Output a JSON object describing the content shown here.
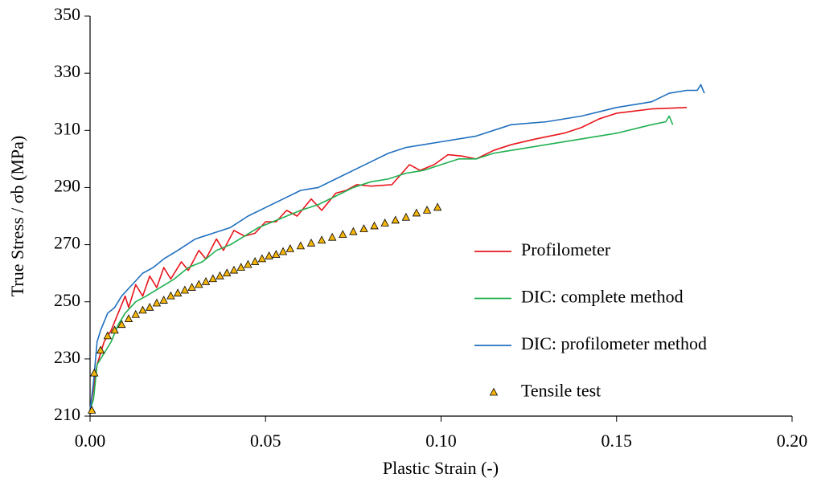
{
  "chart_data": {
    "type": "line",
    "x_label": "Plastic Strain (-)",
    "y_label": "True Stress / σb (MPa)",
    "xlim": [
      0,
      0.2
    ],
    "xticks": [
      {
        "value": 0,
        "label": "0.00"
      },
      {
        "value": 0.05,
        "label": "0.05"
      },
      {
        "value": 0.1,
        "label": "0.10"
      },
      {
        "value": 0.15,
        "label": "0.15"
      },
      {
        "value": 0.2,
        "label": "0.20"
      }
    ],
    "ylim": [
      210,
      350
    ],
    "yticks": [
      210,
      230,
      250,
      270,
      290,
      310,
      330,
      350
    ],
    "grid": false,
    "legend": "right",
    "series": [
      {
        "name": "Profilometer",
        "color": "#e8141b",
        "mode": "line",
        "x": [
          0,
          0.002,
          0.004,
          0.006,
          0.008,
          0.01,
          0.011,
          0.013,
          0.015,
          0.017,
          0.019,
          0.021,
          0.023,
          0.026,
          0.028,
          0.031,
          0.033,
          0.036,
          0.038,
          0.041,
          0.044,
          0.047,
          0.05,
          0.053,
          0.056,
          0.059,
          0.063,
          0.066,
          0.07,
          0.073,
          0.076,
          0.08,
          0.086,
          0.091,
          0.094,
          0.098,
          0.102,
          0.106,
          0.11,
          0.115,
          0.12,
          0.127,
          0.135,
          0.14,
          0.145,
          0.15,
          0.16,
          0.17
        ],
        "values": [
          212,
          228,
          236,
          240,
          246,
          252,
          248,
          256,
          252,
          259,
          255,
          262,
          258,
          264,
          261,
          268,
          265,
          272,
          268,
          275,
          273,
          274,
          278,
          278,
          282,
          280,
          286,
          282,
          288,
          289,
          291,
          290.5,
          291,
          298,
          296,
          298,
          301.5,
          301,
          300,
          303,
          305,
          307,
          309,
          311,
          314,
          316,
          317.5,
          318
        ]
      },
      {
        "name": "DIC: complete method",
        "color": "#1fb04f",
        "mode": "line",
        "x": [
          0,
          0.001,
          0.002,
          0.004,
          0.006,
          0.008,
          0.01,
          0.013,
          0.016,
          0.02,
          0.024,
          0.028,
          0.032,
          0.036,
          0.04,
          0.044,
          0.048,
          0.052,
          0.056,
          0.06,
          0.065,
          0.07,
          0.075,
          0.08,
          0.085,
          0.09,
          0.095,
          0.1,
          0.105,
          0.11,
          0.115,
          0.12,
          0.13,
          0.14,
          0.15,
          0.16,
          0.164,
          0.165,
          0.166
        ],
        "values": [
          212,
          216,
          228,
          232,
          236,
          242,
          246,
          250,
          252,
          255,
          258,
          262,
          264,
          268,
          270,
          273,
          276,
          278,
          280,
          282,
          284,
          287,
          290,
          292,
          293,
          295,
          296,
          298,
          300,
          300,
          302,
          303,
          305,
          307,
          309,
          312,
          313,
          315,
          312
        ]
      },
      {
        "name": "DIC: profilometer method",
        "color": "#1f6fbf",
        "mode": "line",
        "x": [
          0,
          0.001,
          0.002,
          0.003,
          0.005,
          0.007,
          0.009,
          0.012,
          0.015,
          0.018,
          0.021,
          0.025,
          0.03,
          0.035,
          0.04,
          0.045,
          0.05,
          0.055,
          0.06,
          0.065,
          0.07,
          0.075,
          0.08,
          0.085,
          0.09,
          0.095,
          0.1,
          0.11,
          0.12,
          0.13,
          0.14,
          0.15,
          0.16,
          0.165,
          0.17,
          0.173,
          0.174,
          0.175
        ],
        "values": [
          212,
          222,
          236,
          240,
          246,
          248,
          252,
          256,
          260,
          262,
          265,
          268,
          272,
          274,
          276,
          280,
          283,
          286,
          289,
          290,
          293,
          296,
          299,
          302,
          304,
          305,
          306,
          308,
          312,
          313,
          315,
          318,
          320,
          323,
          324,
          324,
          326,
          323
        ]
      },
      {
        "name": "Tensile test",
        "color": "#f5b50a",
        "mode": "markers",
        "x": [
          0.0005,
          0.0012,
          0.003,
          0.005,
          0.007,
          0.009,
          0.011,
          0.013,
          0.015,
          0.017,
          0.019,
          0.021,
          0.023,
          0.025,
          0.027,
          0.029,
          0.031,
          0.033,
          0.035,
          0.037,
          0.039,
          0.041,
          0.043,
          0.045,
          0.047,
          0.049,
          0.051,
          0.053,
          0.055,
          0.057,
          0.06,
          0.063,
          0.066,
          0.069,
          0.072,
          0.075,
          0.078,
          0.081,
          0.084,
          0.087,
          0.09,
          0.093,
          0.096,
          0.099
        ],
        "values": [
          212,
          225,
          233,
          238,
          240,
          242,
          244,
          245.5,
          247,
          248,
          249.5,
          250.5,
          252,
          253,
          254,
          255,
          256,
          257,
          258,
          259,
          260,
          261,
          262,
          263,
          264,
          265,
          266,
          266.5,
          267.5,
          268.5,
          269.5,
          270.5,
          271.5,
          272.5,
          273.5,
          274.5,
          275.5,
          276.5,
          277.5,
          278.5,
          279.5,
          281,
          282,
          283
        ]
      }
    ]
  }
}
